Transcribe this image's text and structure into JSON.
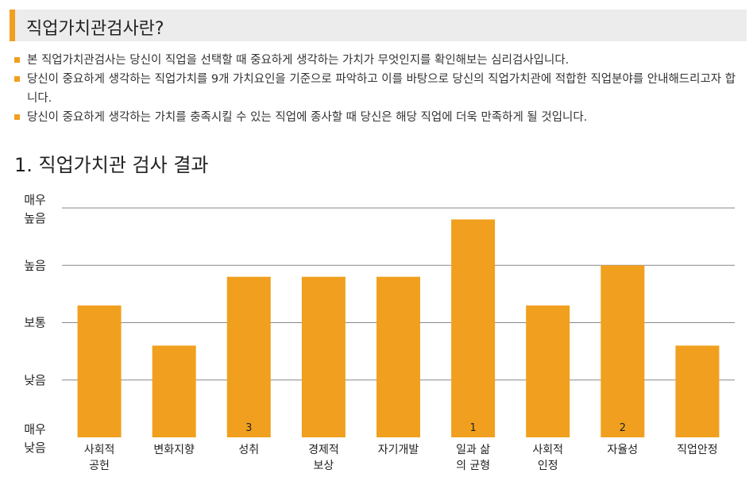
{
  "header": {
    "title": "직업가치관검사란?"
  },
  "bullets": [
    "본 직업가치관검사는 당신이 직업을 선택할 때 중요하게 생각하는 가치가 무엇인지를 확인해보는 심리검사입니다.",
    "당신이 중요하게 생각하는 직업가치를 9개 가치요인을 기준으로 파악하고 이를 바탕으로 당신의 직업가치관에 적합한 직업분야를 안내해드리고자 합니다.",
    "당신이 중요하게 생각하는 가치를 충족시킬 수 있는 직업에 종사할 때 당신은 해당 직업에 더욱 만족하게 될 것입니다."
  ],
  "section": {
    "title": "1. 직업가치관 검사 결과"
  },
  "colors": {
    "bar": "#f0a01e",
    "accent": "#f0a01e",
    "grid": "#888888"
  },
  "chart_data": {
    "type": "bar",
    "categories": [
      [
        "사회적",
        "공헌"
      ],
      [
        "변화지향"
      ],
      [
        "성취"
      ],
      [
        "경제적",
        "보상"
      ],
      [
        "자기개발"
      ],
      [
        "일과 삶",
        "의 균형"
      ],
      [
        "사회적",
        "인정"
      ],
      [
        "자율성"
      ],
      [
        "직업안정"
      ]
    ],
    "values": [
      2.3,
      1.6,
      2.8,
      2.8,
      2.8,
      3.8,
      2.3,
      3.0,
      1.6
    ],
    "ranks": [
      "",
      "",
      "3",
      "",
      "",
      "1",
      "",
      "2",
      ""
    ],
    "y_levels": [
      {
        "value": 0,
        "label": [
          "매우",
          "낮음"
        ]
      },
      {
        "value": 1,
        "label": [
          "낮음"
        ]
      },
      {
        "value": 2,
        "label": [
          "보통"
        ]
      },
      {
        "value": 3,
        "label": [
          "높음"
        ]
      },
      {
        "value": 4,
        "label": [
          "매우",
          "높음"
        ]
      }
    ],
    "ylim": [
      0,
      4
    ],
    "grid": true
  }
}
